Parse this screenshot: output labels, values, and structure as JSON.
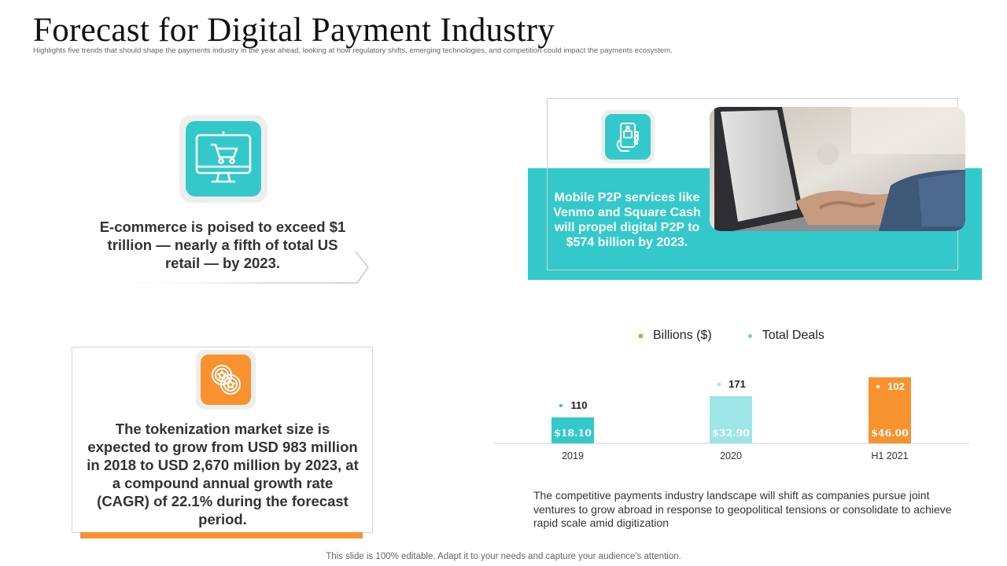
{
  "header": {
    "title": "Forecast for Digital Payment Industry",
    "subtitle": "Highlights  five trends that should shape the payments industry in the year ahead, looking at how regulatory shifts, emerging technologies, and competition could impact the payments ecosystem."
  },
  "ecommerce": {
    "icon": "shopping-cart-monitor-icon",
    "text": "E-commerce is poised to exceed $1 trillion — nearly a fifth of total US retail — by 2023."
  },
  "p2p": {
    "icon": "mobile-payment-icon",
    "text": "Mobile P2P services like Venmo and Square Cash will propel digital P2P to $574 billion by 2023.",
    "photo": "laptop-typing-photo"
  },
  "tokenization": {
    "icon": "coins-icon",
    "text": "The tokenization market size is expected to grow from USD 983 million in 2018 to USD 2,670 million by 2023, at a compound annual growth rate (CAGR) of 22.1% during the forecast period."
  },
  "chart_data": {
    "type": "bar",
    "categories": [
      "2019",
      "2020",
      "H1 2021"
    ],
    "series": [
      {
        "name": "Billions ($)",
        "values": [
          18.1,
          32.9,
          46.0
        ],
        "labels": [
          "$18.10",
          "$32.90",
          "$46.00"
        ]
      },
      {
        "name": "Total Deals",
        "values": [
          110,
          171,
          102
        ]
      }
    ],
    "bar_colors": [
      "#33c9ca",
      "#9ee6e6",
      "#f7922f"
    ],
    "legend": [
      {
        "label": "Billions ($)",
        "color": "#f7922f"
      },
      {
        "label": "Total Deals",
        "color": "#5fd6d7"
      }
    ],
    "legend_position": "top"
  },
  "competitive_text": "The competitive payments industry landscape will shift as companies pursue joint ventures to grow abroad in response to geopolitical tensions or consolidate to achieve rapid scale amid digitization",
  "footer": "This slide is 100% editable. Adapt it to your needs and capture your audience's attention.",
  "colors": {
    "teal": "#33c9ca",
    "orange": "#f7922f",
    "light_teal": "#9ee6e6"
  }
}
